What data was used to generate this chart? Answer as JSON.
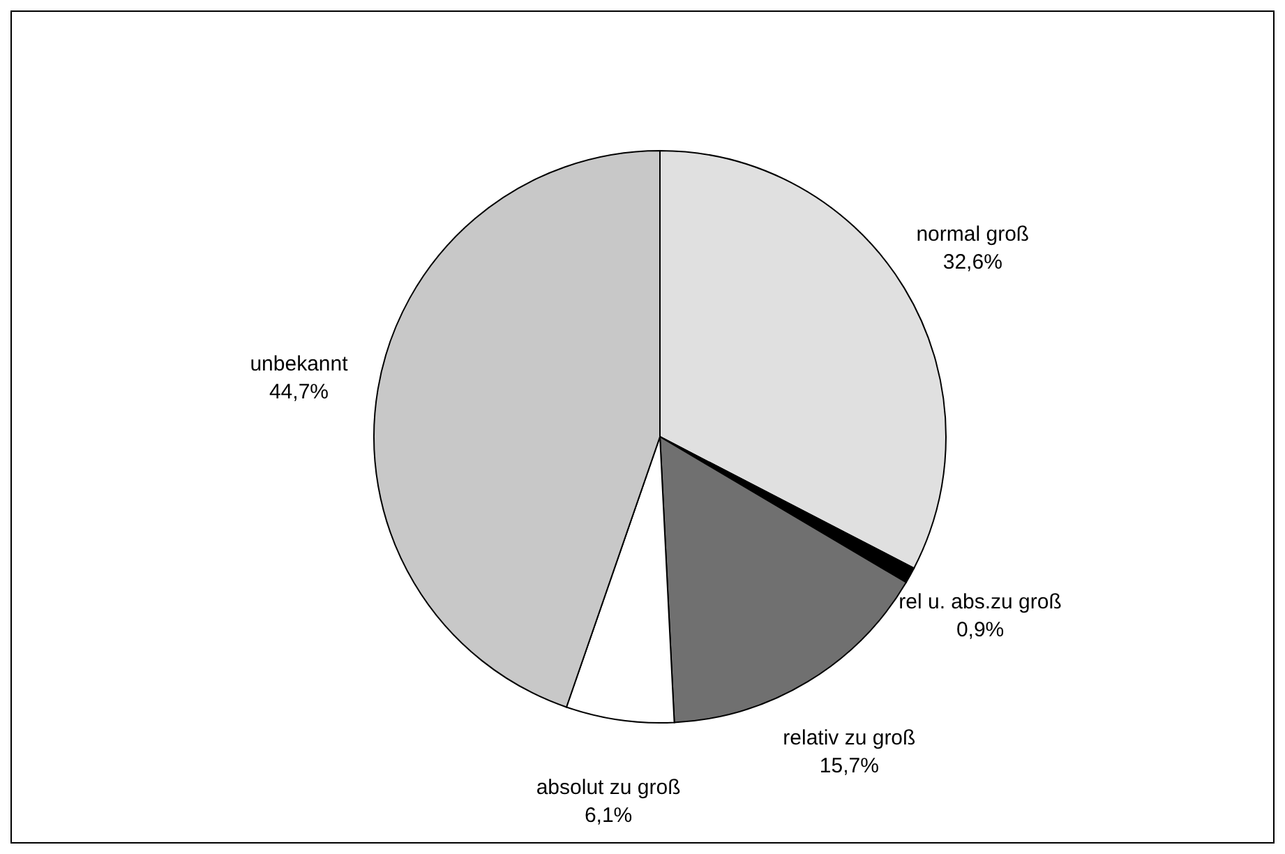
{
  "chart_data": {
    "type": "pie",
    "categories": [
      "normal groß",
      "rel u. abs.zu groß",
      "relativ zu groß",
      "absolut zu groß",
      "unbekannt"
    ],
    "values": [
      32.6,
      0.9,
      15.7,
      6.1,
      44.7
    ],
    "value_labels": [
      "32,6%",
      "0,9%",
      "15,7%",
      "6,1%",
      "44,7%"
    ],
    "colors": [
      "#e0e0e0",
      "#000000",
      "#707070",
      "#ffffff",
      "#c8c8c8"
    ],
    "legend": false
  }
}
